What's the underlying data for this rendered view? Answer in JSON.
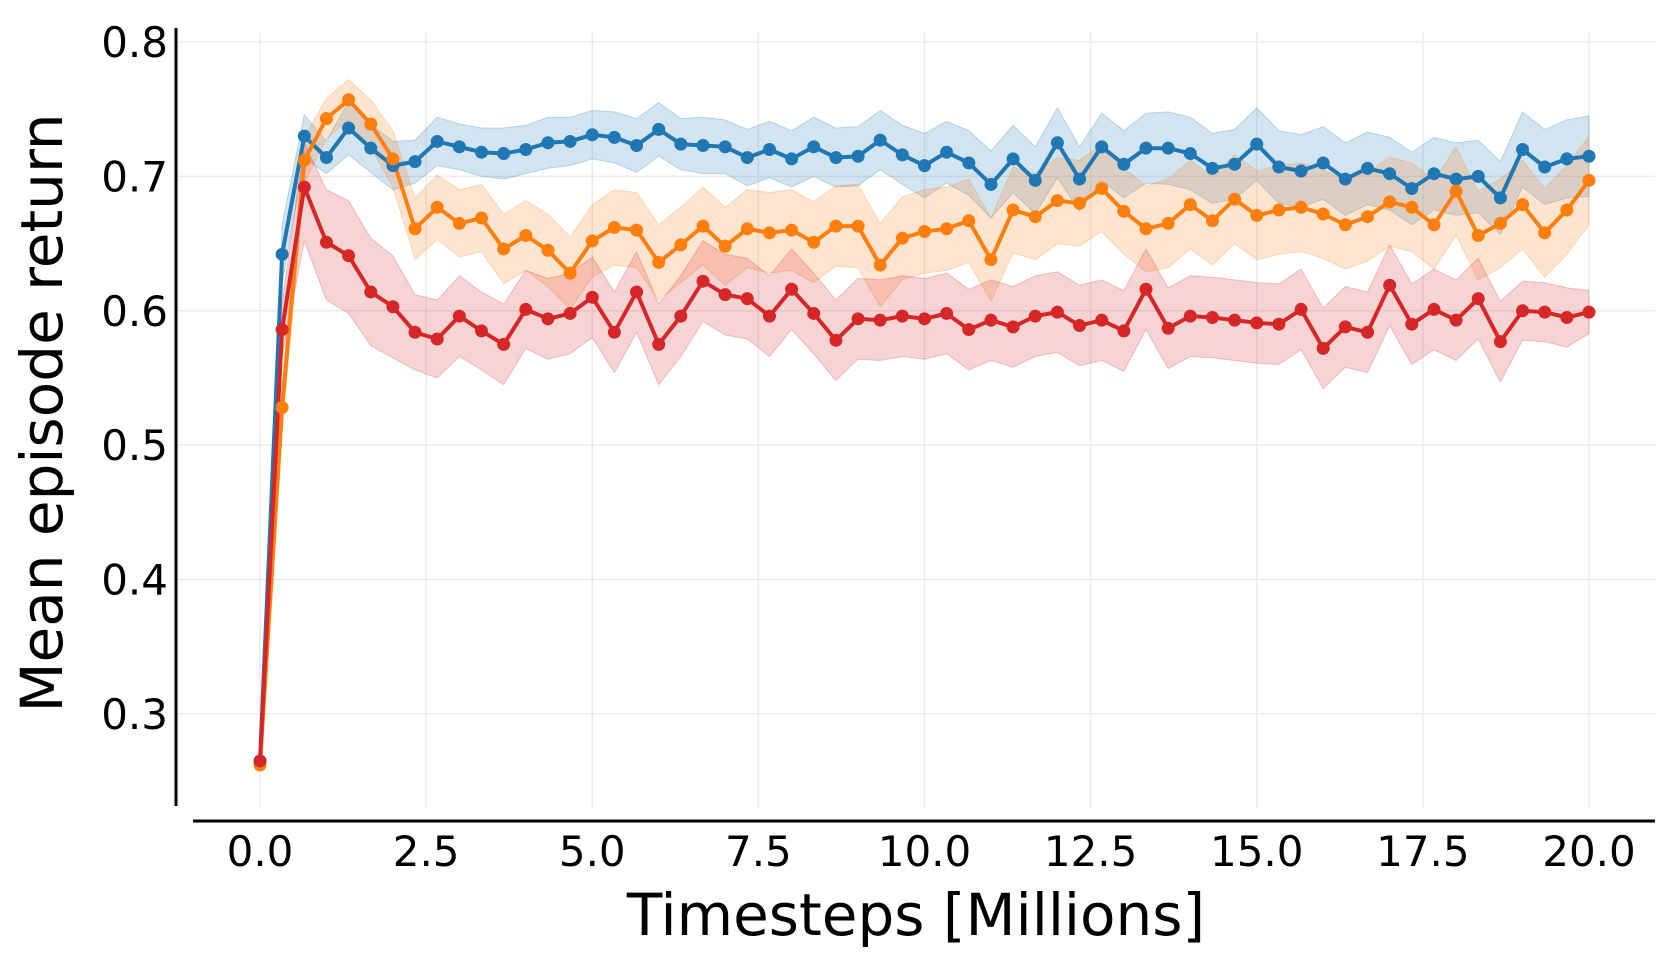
{
  "chart_data": {
    "type": "line",
    "xlabel": "Timesteps [Millions]",
    "ylabel": "Mean episode return",
    "xlim": [
      -0.5,
      20.5
    ],
    "ylim": [
      0.23,
      0.8
    ],
    "xticks": [
      0.0,
      2.5,
      5.0,
      7.5,
      10.0,
      12.5,
      15.0,
      17.5,
      20.0
    ],
    "xtick_labels": [
      "0.0",
      "2.5",
      "5.0",
      "7.5",
      "10.0",
      "12.5",
      "15.0",
      "17.5",
      "20.0"
    ],
    "yticks": [
      0.3,
      0.4,
      0.5,
      0.6,
      0.7,
      0.8
    ],
    "ytick_labels": [
      "0.3",
      "0.4",
      "0.5",
      "0.6",
      "0.7",
      "0.8"
    ],
    "grid": true,
    "legend": "none",
    "x": [
      0.0,
      0.333,
      0.667,
      1.0,
      1.333,
      1.667,
      2.0,
      2.333,
      2.667,
      3.0,
      3.333,
      3.667,
      4.0,
      4.333,
      4.667,
      5.0,
      5.333,
      5.667,
      6.0,
      6.333,
      6.667,
      7.0,
      7.333,
      7.667,
      8.0,
      8.333,
      8.667,
      9.0,
      9.333,
      9.667,
      10.0,
      10.333,
      10.667,
      11.0,
      11.333,
      11.667,
      12.0,
      12.333,
      12.667,
      13.0,
      13.333,
      13.667,
      14.0,
      14.333,
      14.667,
      15.0,
      15.333,
      15.667,
      16.0,
      16.333,
      16.667,
      17.0,
      17.333,
      17.667,
      18.0,
      18.333,
      18.667,
      19.0,
      19.333,
      19.667,
      20.0
    ],
    "series": [
      {
        "color": "#1f77b4",
        "values": [
          0.265,
          0.642,
          0.73,
          0.714,
          0.736,
          0.721,
          0.708,
          0.711,
          0.726,
          0.722,
          0.718,
          0.717,
          0.72,
          0.725,
          0.726,
          0.731,
          0.729,
          0.723,
          0.735,
          0.724,
          0.723,
          0.722,
          0.714,
          0.72,
          0.713,
          0.722,
          0.714,
          0.715,
          0.727,
          0.716,
          0.708,
          0.718,
          0.71,
          0.694,
          0.713,
          0.697,
          0.725,
          0.698,
          0.722,
          0.709,
          0.721,
          0.721,
          0.717,
          0.706,
          0.709,
          0.724,
          0.707,
          0.704,
          0.71,
          0.698,
          0.706,
          0.702,
          0.691,
          0.702,
          0.698,
          0.7,
          0.684,
          0.72,
          0.707,
          0.713,
          0.715
        ],
        "lower": [
          0.265,
          0.62,
          0.714,
          0.702,
          0.716,
          0.703,
          0.69,
          0.695,
          0.708,
          0.705,
          0.7,
          0.698,
          0.702,
          0.706,
          0.708,
          0.713,
          0.71,
          0.703,
          0.715,
          0.705,
          0.702,
          0.702,
          0.693,
          0.699,
          0.692,
          0.7,
          0.692,
          0.693,
          0.705,
          0.694,
          0.684,
          0.695,
          0.686,
          0.669,
          0.688,
          0.672,
          0.699,
          0.674,
          0.697,
          0.684,
          0.695,
          0.694,
          0.69,
          0.68,
          0.683,
          0.697,
          0.68,
          0.677,
          0.683,
          0.671,
          0.679,
          0.675,
          0.664,
          0.675,
          0.671,
          0.673,
          0.657,
          0.692,
          0.679,
          0.684,
          0.685
        ],
        "upper": [
          0.265,
          0.664,
          0.746,
          0.726,
          0.756,
          0.739,
          0.726,
          0.727,
          0.744,
          0.739,
          0.736,
          0.736,
          0.738,
          0.744,
          0.744,
          0.749,
          0.748,
          0.743,
          0.755,
          0.743,
          0.744,
          0.742,
          0.735,
          0.741,
          0.734,
          0.744,
          0.736,
          0.737,
          0.749,
          0.738,
          0.732,
          0.741,
          0.734,
          0.719,
          0.738,
          0.722,
          0.751,
          0.722,
          0.747,
          0.734,
          0.747,
          0.748,
          0.744,
          0.732,
          0.735,
          0.751,
          0.734,
          0.731,
          0.737,
          0.725,
          0.733,
          0.729,
          0.718,
          0.729,
          0.725,
          0.727,
          0.711,
          0.748,
          0.735,
          0.742,
          0.745
        ]
      },
      {
        "color": "#ff7f0e",
        "values": [
          0.262,
          0.528,
          0.712,
          0.743,
          0.757,
          0.739,
          0.713,
          0.661,
          0.677,
          0.665,
          0.669,
          0.646,
          0.656,
          0.645,
          0.628,
          0.652,
          0.662,
          0.66,
          0.636,
          0.649,
          0.663,
          0.648,
          0.661,
          0.658,
          0.66,
          0.651,
          0.663,
          0.663,
          0.634,
          0.654,
          0.659,
          0.661,
          0.667,
          0.638,
          0.675,
          0.67,
          0.682,
          0.68,
          0.691,
          0.674,
          0.661,
          0.665,
          0.679,
          0.667,
          0.683,
          0.671,
          0.675,
          0.677,
          0.672,
          0.664,
          0.67,
          0.681,
          0.677,
          0.664,
          0.689,
          0.656,
          0.665,
          0.679,
          0.658,
          0.675,
          0.697
        ],
        "lower": [
          0.262,
          0.51,
          0.695,
          0.728,
          0.742,
          0.721,
          0.692,
          0.638,
          0.653,
          0.64,
          0.644,
          0.62,
          0.63,
          0.618,
          0.601,
          0.625,
          0.634,
          0.632,
          0.608,
          0.621,
          0.634,
          0.619,
          0.632,
          0.628,
          0.63,
          0.621,
          0.633,
          0.632,
          0.603,
          0.623,
          0.628,
          0.63,
          0.636,
          0.607,
          0.643,
          0.638,
          0.65,
          0.648,
          0.659,
          0.642,
          0.629,
          0.632,
          0.646,
          0.634,
          0.65,
          0.638,
          0.642,
          0.644,
          0.639,
          0.631,
          0.637,
          0.648,
          0.644,
          0.631,
          0.656,
          0.623,
          0.632,
          0.646,
          0.625,
          0.642,
          0.664
        ],
        "upper": [
          0.262,
          0.546,
          0.729,
          0.758,
          0.772,
          0.757,
          0.734,
          0.684,
          0.701,
          0.69,
          0.694,
          0.672,
          0.682,
          0.672,
          0.655,
          0.679,
          0.69,
          0.688,
          0.664,
          0.677,
          0.692,
          0.677,
          0.69,
          0.688,
          0.69,
          0.681,
          0.693,
          0.694,
          0.665,
          0.685,
          0.69,
          0.692,
          0.698,
          0.669,
          0.707,
          0.702,
          0.714,
          0.712,
          0.723,
          0.706,
          0.693,
          0.698,
          0.712,
          0.7,
          0.716,
          0.704,
          0.708,
          0.71,
          0.705,
          0.697,
          0.703,
          0.714,
          0.71,
          0.697,
          0.722,
          0.689,
          0.698,
          0.712,
          0.691,
          0.708,
          0.73
        ]
      },
      {
        "color": "#d62728",
        "values": [
          0.265,
          0.586,
          0.692,
          0.651,
          0.641,
          0.614,
          0.603,
          0.584,
          0.579,
          0.596,
          0.585,
          0.575,
          0.601,
          0.594,
          0.598,
          0.61,
          0.584,
          0.614,
          0.575,
          0.596,
          0.622,
          0.612,
          0.609,
          0.596,
          0.616,
          0.598,
          0.578,
          0.594,
          0.593,
          0.596,
          0.594,
          0.598,
          0.586,
          0.593,
          0.588,
          0.596,
          0.599,
          0.589,
          0.593,
          0.585,
          0.616,
          0.587,
          0.596,
          0.595,
          0.593,
          0.591,
          0.59,
          0.601,
          0.572,
          0.588,
          0.584,
          0.619,
          0.59,
          0.601,
          0.593,
          0.609,
          0.577,
          0.6,
          0.599,
          0.595,
          0.599
        ],
        "lower": [
          0.265,
          0.566,
          0.652,
          0.608,
          0.598,
          0.574,
          0.565,
          0.556,
          0.55,
          0.566,
          0.556,
          0.545,
          0.572,
          0.564,
          0.568,
          0.58,
          0.554,
          0.584,
          0.545,
          0.566,
          0.592,
          0.582,
          0.579,
          0.566,
          0.586,
          0.568,
          0.548,
          0.564,
          0.563,
          0.566,
          0.564,
          0.568,
          0.556,
          0.563,
          0.558,
          0.566,
          0.569,
          0.559,
          0.563,
          0.555,
          0.586,
          0.557,
          0.566,
          0.565,
          0.563,
          0.561,
          0.56,
          0.571,
          0.542,
          0.558,
          0.554,
          0.589,
          0.56,
          0.571,
          0.563,
          0.579,
          0.547,
          0.578,
          0.577,
          0.573,
          0.583
        ],
        "upper": [
          0.265,
          0.606,
          0.725,
          0.69,
          0.682,
          0.654,
          0.641,
          0.612,
          0.608,
          0.626,
          0.614,
          0.605,
          0.63,
          0.624,
          0.628,
          0.64,
          0.614,
          0.644,
          0.605,
          0.626,
          0.652,
          0.642,
          0.639,
          0.626,
          0.646,
          0.628,
          0.608,
          0.624,
          0.623,
          0.626,
          0.624,
          0.628,
          0.616,
          0.623,
          0.618,
          0.626,
          0.629,
          0.619,
          0.623,
          0.615,
          0.646,
          0.617,
          0.626,
          0.625,
          0.623,
          0.621,
          0.62,
          0.631,
          0.602,
          0.618,
          0.614,
          0.649,
          0.62,
          0.631,
          0.623,
          0.639,
          0.607,
          0.622,
          0.621,
          0.617,
          0.615
        ]
      }
    ]
  }
}
